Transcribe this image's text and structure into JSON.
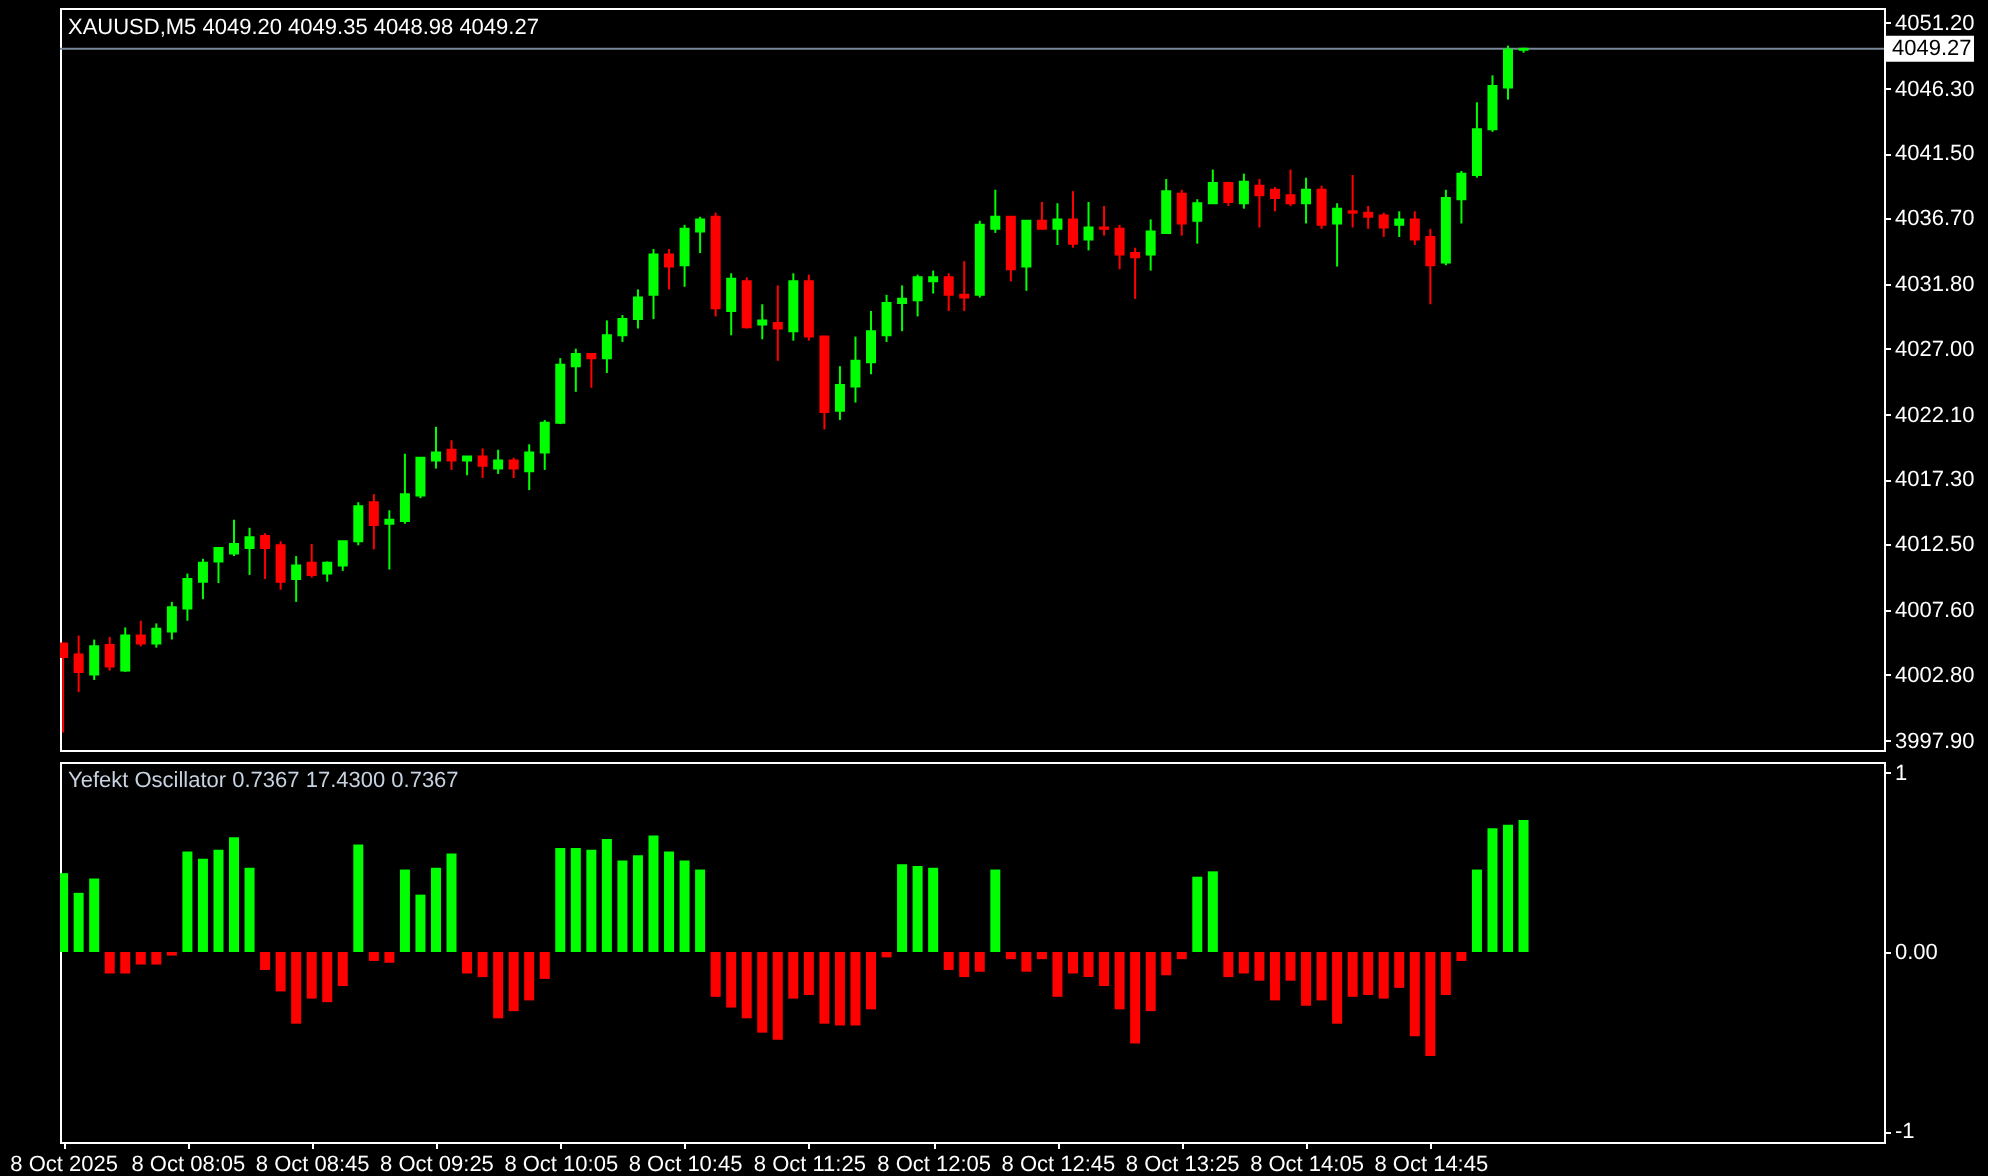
{
  "chart_data": [
    {
      "type": "candlestick",
      "title": "XAUUSD,M5 4049.20 4049.35 4048.98 4049.27",
      "x": [
        "2025-10-08T07:25",
        "2025-10-08T07:30",
        "2025-10-08T07:35",
        "2025-10-08T07:40",
        "2025-10-08T07:45",
        "2025-10-08T07:50",
        "2025-10-08T07:55",
        "2025-10-08T08:00",
        "2025-10-08T08:05",
        "2025-10-08T08:10",
        "2025-10-08T08:15",
        "2025-10-08T08:20",
        "2025-10-08T08:25",
        "2025-10-08T08:30",
        "2025-10-08T08:35",
        "2025-10-08T08:40",
        "2025-10-08T08:45",
        "2025-10-08T08:50",
        "2025-10-08T08:55",
        "2025-10-08T09:00",
        "2025-10-08T09:05",
        "2025-10-08T09:10",
        "2025-10-08T09:15",
        "2025-10-08T09:20",
        "2025-10-08T09:25",
        "2025-10-08T09:30",
        "2025-10-08T09:35",
        "2025-10-08T09:40",
        "2025-10-08T09:45",
        "2025-10-08T09:50",
        "2025-10-08T09:55",
        "2025-10-08T10:00",
        "2025-10-08T10:05",
        "2025-10-08T10:10",
        "2025-10-08T10:15",
        "2025-10-08T10:20",
        "2025-10-08T10:25",
        "2025-10-08T10:30",
        "2025-10-08T10:35",
        "2025-10-08T10:40",
        "2025-10-08T10:45",
        "2025-10-08T10:50",
        "2025-10-08T10:55",
        "2025-10-08T11:00",
        "2025-10-08T11:05",
        "2025-10-08T11:10",
        "2025-10-08T11:15",
        "2025-10-08T11:20",
        "2025-10-08T11:25",
        "2025-10-08T11:30",
        "2025-10-08T11:35",
        "2025-10-08T11:40",
        "2025-10-08T11:45",
        "2025-10-08T11:50",
        "2025-10-08T11:55",
        "2025-10-08T12:00",
        "2025-10-08T12:05",
        "2025-10-08T12:10",
        "2025-10-08T12:15",
        "2025-10-08T12:20",
        "2025-10-08T12:25",
        "2025-10-08T12:30",
        "2025-10-08T12:35",
        "2025-10-08T12:40",
        "2025-10-08T12:45",
        "2025-10-08T12:50",
        "2025-10-08T12:55",
        "2025-10-08T13:00",
        "2025-10-08T13:05",
        "2025-10-08T13:10",
        "2025-10-08T13:15",
        "2025-10-08T13:20",
        "2025-10-08T13:25",
        "2025-10-08T13:30",
        "2025-10-08T13:35",
        "2025-10-08T13:40",
        "2025-10-08T13:45",
        "2025-10-08T13:50",
        "2025-10-08T13:55",
        "2025-10-08T14:00",
        "2025-10-08T14:05",
        "2025-10-08T14:10",
        "2025-10-08T14:15",
        "2025-10-08T14:20",
        "2025-10-08T14:25",
        "2025-10-08T14:30",
        "2025-10-08T14:35",
        "2025-10-08T14:40",
        "2025-10-08T14:45",
        "2025-10-08T14:50",
        "2025-10-08T14:55",
        "2025-10-08T15:00",
        "2025-10-08T15:05",
        "2025-10-08T15:10",
        "2025-10-08T15:15"
      ],
      "ohlc": [
        [
          4005.1,
          4005.1,
          3998.5,
          4004.1
        ],
        [
          4004.3,
          4005.7,
          4001.5,
          4003.0
        ],
        [
          4002.8,
          4005.4,
          4002.4,
          4004.9
        ],
        [
          4005.0,
          4005.6,
          4003.1,
          4003.4
        ],
        [
          4003.1,
          4006.3,
          4003.0,
          4005.7
        ],
        [
          4005.7,
          4006.8,
          4004.9,
          4005.1
        ],
        [
          4005.1,
          4006.6,
          4004.8,
          4006.2
        ],
        [
          4006.0,
          4008.2,
          4005.4,
          4007.8
        ],
        [
          4007.7,
          4010.3,
          4006.8,
          4009.9
        ],
        [
          4009.7,
          4011.4,
          4008.4,
          4011.1
        ],
        [
          4011.2,
          4012.2,
          4009.6,
          4012.2
        ],
        [
          4011.8,
          4014.3,
          4011.6,
          4012.5
        ],
        [
          4012.2,
          4013.7,
          4010.2,
          4013.0
        ],
        [
          4013.1,
          4013.3,
          4009.9,
          4012.2
        ],
        [
          4012.4,
          4012.7,
          4009.1,
          4009.7
        ],
        [
          4009.9,
          4011.6,
          4008.2,
          4010.9
        ],
        [
          4011.1,
          4012.5,
          4010.0,
          4010.2
        ],
        [
          4010.3,
          4011.2,
          4009.7,
          4011.1
        ],
        [
          4010.9,
          4012.7,
          4010.5,
          4012.7
        ],
        [
          4012.7,
          4015.6,
          4012.4,
          4015.3
        ],
        [
          4015.6,
          4016.2,
          4012.1,
          4013.9
        ],
        [
          4014.0,
          4015.0,
          4010.6,
          4014.3
        ],
        [
          4014.2,
          4019.2,
          4014.0,
          4016.2
        ],
        [
          4016.1,
          4018.9,
          4015.9,
          4018.9
        ],
        [
          4018.7,
          4021.2,
          4018.1,
          4019.3
        ],
        [
          4019.5,
          4020.2,
          4018.0,
          4018.7
        ],
        [
          4018.7,
          4019.0,
          4017.6,
          4019.0
        ],
        [
          4019.0,
          4019.6,
          4017.4,
          4018.3
        ],
        [
          4018.1,
          4019.5,
          4017.7,
          4018.7
        ],
        [
          4018.7,
          4018.9,
          4017.4,
          4018.1
        ],
        [
          4017.9,
          4019.9,
          4016.5,
          4019.3
        ],
        [
          4019.3,
          4021.7,
          4018.0,
          4021.5
        ],
        [
          4021.5,
          4026.3,
          4021.4,
          4025.8
        ],
        [
          4025.7,
          4027.0,
          4023.8,
          4026.6
        ],
        [
          4026.6,
          4026.6,
          4024.1,
          4026.3
        ],
        [
          4026.3,
          4029.1,
          4025.2,
          4028.0
        ],
        [
          4028.0,
          4029.5,
          4027.5,
          4029.2
        ],
        [
          4029.2,
          4031.4,
          4028.5,
          4030.8
        ],
        [
          4031.0,
          4034.4,
          4029.2,
          4034.0
        ],
        [
          4034.0,
          4034.4,
          4031.4,
          4033.1
        ],
        [
          4033.2,
          4036.2,
          4031.6,
          4035.9
        ],
        [
          4035.7,
          4036.8,
          4034.1,
          4036.6
        ],
        [
          4036.8,
          4037.1,
          4029.4,
          4030.0
        ],
        [
          4029.8,
          4032.6,
          4028.0,
          4032.2
        ],
        [
          4032.0,
          4032.3,
          4028.5,
          4028.6
        ],
        [
          4028.8,
          4030.3,
          4027.7,
          4029.1
        ],
        [
          4028.9,
          4031.7,
          4026.1,
          4028.5
        ],
        [
          4028.3,
          4032.6,
          4027.6,
          4032.0
        ],
        [
          4032.0,
          4032.5,
          4027.6,
          4027.9
        ],
        [
          4027.9,
          4027.9,
          4021.0,
          4022.3
        ],
        [
          4022.4,
          4025.7,
          4021.7,
          4024.3
        ],
        [
          4024.2,
          4027.9,
          4023.0,
          4026.1
        ],
        [
          4026.0,
          4029.8,
          4025.1,
          4028.3
        ],
        [
          4028.0,
          4031.0,
          4027.5,
          4030.4
        ],
        [
          4030.4,
          4031.7,
          4028.3,
          4030.7
        ],
        [
          4030.6,
          4032.5,
          4029.4,
          4032.3
        ],
        [
          4032.0,
          4032.8,
          4031.1,
          4032.3
        ],
        [
          4032.3,
          4032.6,
          4029.8,
          4031.0
        ],
        [
          4031.0,
          4033.5,
          4029.8,
          4030.8
        ],
        [
          4031.0,
          4036.5,
          4030.8,
          4036.2
        ],
        [
          4035.9,
          4038.8,
          4035.6,
          4036.8
        ],
        [
          4036.8,
          4036.8,
          4032.0,
          4032.9
        ],
        [
          4033.1,
          4036.5,
          4031.3,
          4036.5
        ],
        [
          4036.5,
          4037.9,
          4035.9,
          4035.9
        ],
        [
          4035.9,
          4037.8,
          4034.7,
          4036.6
        ],
        [
          4036.6,
          4038.7,
          4034.5,
          4034.8
        ],
        [
          4035.1,
          4037.9,
          4034.3,
          4036.0
        ],
        [
          4036.0,
          4037.6,
          4035.4,
          4035.9
        ],
        [
          4035.9,
          4036.2,
          4032.9,
          4034.0
        ],
        [
          4034.1,
          4034.5,
          4030.7,
          4033.8
        ],
        [
          4034.0,
          4036.6,
          4032.8,
          4035.7
        ],
        [
          4035.6,
          4039.6,
          4035.6,
          4038.7
        ],
        [
          4038.5,
          4038.8,
          4035.4,
          4036.3
        ],
        [
          4036.5,
          4038.1,
          4034.8,
          4037.8
        ],
        [
          4037.8,
          4040.3,
          4037.8,
          4039.3
        ],
        [
          4039.3,
          4039.4,
          4037.6,
          4037.9
        ],
        [
          4037.8,
          4040.0,
          4037.4,
          4039.4
        ],
        [
          4039.1,
          4039.6,
          4036.0,
          4038.4
        ],
        [
          4038.8,
          4039.0,
          4037.2,
          4038.2
        ],
        [
          4038.4,
          4040.3,
          4037.6,
          4037.8
        ],
        [
          4037.8,
          4039.7,
          4036.3,
          4038.8
        ],
        [
          4038.8,
          4039.1,
          4035.9,
          4036.2
        ],
        [
          4036.3,
          4037.8,
          4033.1,
          4037.4
        ],
        [
          4037.2,
          4039.9,
          4036.0,
          4037.1
        ],
        [
          4037.1,
          4037.6,
          4035.9,
          4036.8
        ],
        [
          4036.9,
          4037.1,
          4035.3,
          4036.0
        ],
        [
          4036.2,
          4037.2,
          4035.3,
          4036.6
        ],
        [
          4036.6,
          4037.2,
          4034.7,
          4035.1
        ],
        [
          4035.3,
          4035.9,
          4030.3,
          4033.2
        ],
        [
          4033.4,
          4038.8,
          4033.2,
          4038.2
        ],
        [
          4038.1,
          4040.2,
          4036.3,
          4040.0
        ],
        [
          4039.9,
          4045.3,
          4039.7,
          4043.3
        ],
        [
          4043.3,
          4047.3,
          4043.1,
          4046.5
        ],
        [
          4046.4,
          4049.5,
          4045.5,
          4049.2
        ],
        [
          4049.2,
          4049.35,
          4048.98,
          4049.27
        ]
      ],
      "colors": [
        "#ff0000",
        "#ff0000",
        "#00ff00",
        "#ff0000",
        "#00ff00",
        "#ff0000",
        "#00ff00",
        "#00ff00",
        "#00ff00",
        "#00ff00",
        "#00ff00",
        "#00ff00",
        "#00ff00",
        "#ff0000",
        "#ff0000",
        "#00ff00",
        "#ff0000",
        "#00ff00",
        "#00ff00",
        "#00ff00",
        "#ff0000",
        "#00ff00",
        "#00ff00",
        "#00ff00",
        "#00ff00",
        "#ff0000",
        "#00ff00",
        "#ff0000",
        "#00ff00",
        "#ff0000",
        "#00ff00",
        "#00ff00",
        "#00ff00",
        "#00ff00",
        "#ff0000",
        "#00ff00",
        "#00ff00",
        "#00ff00",
        "#00ff00",
        "#ff0000",
        "#00ff00",
        "#00ff00",
        "#ff0000",
        "#00ff00",
        "#ff0000",
        "#00ff00",
        "#ff0000",
        "#00ff00",
        "#ff0000",
        "#ff0000",
        "#00ff00",
        "#00ff00",
        "#00ff00",
        "#00ff00",
        "#00ff00",
        "#00ff00",
        "#00ff00",
        "#ff0000",
        "#ff0000",
        "#00ff00",
        "#00ff00",
        "#ff0000",
        "#00ff00",
        "#ff0000",
        "#00ff00",
        "#ff0000",
        "#00ff00",
        "#ff0000",
        "#ff0000",
        "#ff0000",
        "#00ff00",
        "#00ff00",
        "#ff0000",
        "#00ff00",
        "#00ff00",
        "#ff0000",
        "#00ff00",
        "#ff0000",
        "#ff0000",
        "#ff0000",
        "#00ff00",
        "#ff0000",
        "#00ff00",
        "#ff0000",
        "#ff0000",
        "#ff0000",
        "#00ff00",
        "#ff0000",
        "#ff0000",
        "#00ff00",
        "#00ff00",
        "#00ff00",
        "#00ff00",
        "#00ff00",
        "#00ff00"
      ],
      "xlim": [
        "2025-10-08T07:24",
        "2025-10-08T17:11"
      ],
      "ylim": [
        3997.2,
        4052.3
      ],
      "yticks": [
        {
          "value": 4051.2,
          "label": "4051.20"
        },
        {
          "value": 4046.3,
          "label": "4046.30"
        },
        {
          "value": 4041.5,
          "label": "4041.50"
        },
        {
          "value": 4036.7,
          "label": "4036.70"
        },
        {
          "value": 4031.8,
          "label": "4031.80"
        },
        {
          "value": 4027.0,
          "label": "4027.00"
        },
        {
          "value": 4022.1,
          "label": "4022.10"
        },
        {
          "value": 4017.3,
          "label": "4017.30"
        },
        {
          "value": 4012.5,
          "label": "4012.50"
        },
        {
          "value": 4007.6,
          "label": "4007.60"
        },
        {
          "value": 4002.8,
          "label": "4002.80"
        },
        {
          "value": 3997.9,
          "label": "3997.90"
        }
      ],
      "tick_labels": "y",
      "ref_lines": [
        {
          "axis": "y",
          "value": 4049.27,
          "label": "4049.27",
          "color": "#778899"
        }
      ]
    },
    {
      "type": "bar",
      "title": "Yefekt Oscillator 0.7367 17.4300 0.7367",
      "x": [
        "2025-10-08T07:25",
        "2025-10-08T07:30",
        "2025-10-08T07:35",
        "2025-10-08T07:40",
        "2025-10-08T07:45",
        "2025-10-08T07:50",
        "2025-10-08T07:55",
        "2025-10-08T08:00",
        "2025-10-08T08:05",
        "2025-10-08T08:10",
        "2025-10-08T08:15",
        "2025-10-08T08:20",
        "2025-10-08T08:25",
        "2025-10-08T08:30",
        "2025-10-08T08:35",
        "2025-10-08T08:40",
        "2025-10-08T08:45",
        "2025-10-08T08:50",
        "2025-10-08T08:55",
        "2025-10-08T09:00",
        "2025-10-08T09:05",
        "2025-10-08T09:10",
        "2025-10-08T09:15",
        "2025-10-08T09:20",
        "2025-10-08T09:25",
        "2025-10-08T09:30",
        "2025-10-08T09:35",
        "2025-10-08T09:40",
        "2025-10-08T09:45",
        "2025-10-08T09:50",
        "2025-10-08T09:55",
        "2025-10-08T10:00",
        "2025-10-08T10:05",
        "2025-10-08T10:10",
        "2025-10-08T10:15",
        "2025-10-08T10:20",
        "2025-10-08T10:25",
        "2025-10-08T10:30",
        "2025-10-08T10:35",
        "2025-10-08T10:40",
        "2025-10-08T10:45",
        "2025-10-08T10:50",
        "2025-10-08T10:55",
        "2025-10-08T11:00",
        "2025-10-08T11:05",
        "2025-10-08T11:10",
        "2025-10-08T11:15",
        "2025-10-08T11:20",
        "2025-10-08T11:25",
        "2025-10-08T11:30",
        "2025-10-08T11:35",
        "2025-10-08T11:40",
        "2025-10-08T11:45",
        "2025-10-08T11:50",
        "2025-10-08T11:55",
        "2025-10-08T12:00",
        "2025-10-08T12:05",
        "2025-10-08T12:10",
        "2025-10-08T12:15",
        "2025-10-08T12:20",
        "2025-10-08T12:25",
        "2025-10-08T12:30",
        "2025-10-08T12:35",
        "2025-10-08T12:40",
        "2025-10-08T12:45",
        "2025-10-08T12:50",
        "2025-10-08T12:55",
        "2025-10-08T13:00",
        "2025-10-08T13:05",
        "2025-10-08T13:10",
        "2025-10-08T13:15",
        "2025-10-08T13:20",
        "2025-10-08T13:25",
        "2025-10-08T13:30",
        "2025-10-08T13:35",
        "2025-10-08T13:40",
        "2025-10-08T13:45",
        "2025-10-08T13:50",
        "2025-10-08T13:55",
        "2025-10-08T14:00",
        "2025-10-08T14:05",
        "2025-10-08T14:10",
        "2025-10-08T14:15",
        "2025-10-08T14:20",
        "2025-10-08T14:25",
        "2025-10-08T14:30",
        "2025-10-08T14:35",
        "2025-10-08T14:40",
        "2025-10-08T14:45",
        "2025-10-08T14:50",
        "2025-10-08T14:55",
        "2025-10-08T15:00",
        "2025-10-08T15:05",
        "2025-10-08T15:10",
        "2025-10-08T15:15"
      ],
      "values": [
        0.44,
        0.33,
        0.41,
        -0.12,
        -0.12,
        -0.07,
        -0.07,
        -0.02,
        0.56,
        0.52,
        0.57,
        0.64,
        0.47,
        -0.1,
        -0.22,
        -0.4,
        -0.26,
        -0.28,
        -0.19,
        0.6,
        -0.05,
        -0.06,
        0.46,
        0.32,
        0.47,
        0.55,
        -0.12,
        -0.14,
        -0.37,
        -0.33,
        -0.27,
        -0.15,
        0.58,
        0.58,
        0.57,
        0.63,
        0.51,
        0.54,
        0.65,
        0.56,
        0.51,
        0.46,
        -0.25,
        -0.31,
        -0.37,
        -0.45,
        -0.49,
        -0.26,
        -0.24,
        -0.4,
        -0.41,
        -0.41,
        -0.32,
        -0.03,
        0.49,
        0.48,
        0.47,
        -0.1,
        -0.14,
        -0.11,
        0.46,
        -0.04,
        -0.11,
        -0.04,
        -0.25,
        -0.12,
        -0.14,
        -0.19,
        -0.32,
        -0.51,
        -0.33,
        -0.13,
        -0.04,
        0.42,
        0.45,
        -0.14,
        -0.12,
        -0.16,
        -0.27,
        -0.16,
        -0.3,
        -0.27,
        -0.4,
        -0.25,
        -0.24,
        -0.26,
        -0.2,
        -0.47,
        -0.58,
        -0.24,
        -0.05,
        0.46,
        0.69,
        0.71,
        0.7367
      ],
      "colors": [
        "#00ff00",
        "#00ff00",
        "#00ff00",
        "#ff0000",
        "#ff0000",
        "#ff0000",
        "#ff0000",
        "#ff0000",
        "#00ff00",
        "#00ff00",
        "#00ff00",
        "#00ff00",
        "#00ff00",
        "#ff0000",
        "#ff0000",
        "#ff0000",
        "#ff0000",
        "#ff0000",
        "#ff0000",
        "#00ff00",
        "#ff0000",
        "#ff0000",
        "#00ff00",
        "#00ff00",
        "#00ff00",
        "#00ff00",
        "#ff0000",
        "#ff0000",
        "#ff0000",
        "#ff0000",
        "#ff0000",
        "#ff0000",
        "#00ff00",
        "#00ff00",
        "#00ff00",
        "#00ff00",
        "#00ff00",
        "#00ff00",
        "#00ff00",
        "#00ff00",
        "#00ff00",
        "#00ff00",
        "#ff0000",
        "#ff0000",
        "#ff0000",
        "#ff0000",
        "#ff0000",
        "#ff0000",
        "#ff0000",
        "#ff0000",
        "#ff0000",
        "#ff0000",
        "#ff0000",
        "#ff0000",
        "#00ff00",
        "#00ff00",
        "#00ff00",
        "#ff0000",
        "#ff0000",
        "#ff0000",
        "#00ff00",
        "#ff0000",
        "#ff0000",
        "#ff0000",
        "#ff0000",
        "#ff0000",
        "#ff0000",
        "#ff0000",
        "#ff0000",
        "#ff0000",
        "#ff0000",
        "#ff0000",
        "#ff0000",
        "#00ff00",
        "#00ff00",
        "#ff0000",
        "#ff0000",
        "#ff0000",
        "#ff0000",
        "#ff0000",
        "#ff0000",
        "#ff0000",
        "#ff0000",
        "#ff0000",
        "#ff0000",
        "#ff0000",
        "#ff0000",
        "#ff0000",
        "#ff0000",
        "#ff0000",
        "#ff0000",
        "#00ff00",
        "#00ff00",
        "#00ff00",
        "#00ff00"
      ],
      "xlim": [
        "2025-10-08T07:24",
        "2025-10-08T17:11"
      ],
      "xticks": [
        {
          "value": "2025-10-08T07:25",
          "label": "8 Oct 2025"
        },
        {
          "value": "2025-10-08T08:05",
          "label": "8 Oct 08:05"
        },
        {
          "value": "2025-10-08T08:45",
          "label": "8 Oct 08:45"
        },
        {
          "value": "2025-10-08T09:25",
          "label": "8 Oct 09:25"
        },
        {
          "value": "2025-10-08T10:05",
          "label": "8 Oct 10:05"
        },
        {
          "value": "2025-10-08T10:45",
          "label": "8 Oct 10:45"
        },
        {
          "value": "2025-10-08T11:25",
          "label": "8 Oct 11:25"
        },
        {
          "value": "2025-10-08T12:05",
          "label": "8 Oct 12:05"
        },
        {
          "value": "2025-10-08T12:45",
          "label": "8 Oct 12:45"
        },
        {
          "value": "2025-10-08T13:25",
          "label": "8 Oct 13:25"
        },
        {
          "value": "2025-10-08T14:05",
          "label": "8 Oct 14:05"
        },
        {
          "value": "2025-10-08T14:45",
          "label": "8 Oct 14:45"
        }
      ],
      "ylim": [
        -1.06,
        1.06
      ],
      "yticks": [
        1,
        {
          "value": 0,
          "label": "0.00"
        },
        -1
      ]
    }
  ]
}
